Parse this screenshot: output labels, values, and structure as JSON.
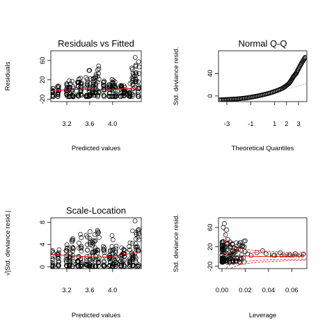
{
  "chart_data": [
    {
      "type": "scatter",
      "title": "Residuals vs Fitted",
      "xlabel": "Predicted values",
      "ylabel": "Residuals",
      "xticks": [
        "3.2",
        "3.6",
        "4.0"
      ],
      "xtick_values": [
        3.2,
        3.6,
        4.0
      ],
      "yticks": [
        "-20",
        "20",
        "60"
      ],
      "ytick_values": [
        -20,
        20,
        60
      ],
      "xlim": [
        2.92,
        4.5
      ],
      "ylim": [
        -25,
        80
      ],
      "reference_line": {
        "y": 0,
        "style": "dotted"
      },
      "smoother_color": "#ff0000",
      "smoother": [
        [
          2.95,
          -3
        ],
        [
          3.3,
          0
        ],
        [
          3.6,
          1
        ],
        [
          3.9,
          -1
        ],
        [
          4.2,
          2
        ],
        [
          4.45,
          3
        ]
      ],
      "x_groups": [
        2.95,
        3.05,
        3.2,
        3.25,
        3.3,
        3.4,
        3.45,
        3.55,
        3.6,
        3.65,
        3.7,
        3.75,
        3.85,
        3.95,
        4.0,
        4.05,
        4.15,
        4.2,
        4.3,
        4.35,
        4.4,
        4.45
      ],
      "y_max_per_group": [
        5,
        10,
        15,
        18,
        25,
        22,
        30,
        28,
        40,
        25,
        35,
        55,
        20,
        12,
        38,
        16,
        15,
        10,
        20,
        45,
        70,
        60
      ],
      "y_min": -15
    },
    {
      "type": "scatter",
      "title": "Normal Q-Q",
      "xlabel": "Theoretical Quantiles",
      "ylabel": "Std. deviance resid.",
      "xticks": [
        "-3",
        "-1",
        "1",
        "2",
        "3"
      ],
      "xtick_values": [
        -3,
        -1,
        1,
        2,
        3
      ],
      "yticks": [
        "0",
        "40"
      ],
      "ytick_values": [
        0,
        40
      ],
      "xlim": [
        -3.7,
        3.7
      ],
      "ylim": [
        -10,
        80
      ],
      "reference_line": {
        "intercept": 0,
        "slope": 6,
        "style": "dotted"
      },
      "quantile_points": [
        [
          -3.6,
          -7
        ],
        [
          -3.2,
          -6.5
        ],
        [
          -2.8,
          -6
        ],
        [
          -2.4,
          -5.5
        ],
        [
          -2,
          -5
        ],
        [
          -1.6,
          -4
        ],
        [
          -1.2,
          -3
        ],
        [
          -0.8,
          -1.5
        ],
        [
          -0.4,
          0
        ],
        [
          0,
          2
        ],
        [
          0.4,
          4
        ],
        [
          0.8,
          6.5
        ],
        [
          1.2,
          9.5
        ],
        [
          1.6,
          13
        ],
        [
          1.9,
          17
        ],
        [
          2.2,
          22
        ],
        [
          2.4,
          28
        ],
        [
          2.6,
          35
        ],
        [
          2.8,
          40
        ],
        [
          3.0,
          48
        ],
        [
          3.2,
          56
        ],
        [
          3.4,
          63
        ],
        [
          3.6,
          70
        ]
      ]
    },
    {
      "type": "scatter",
      "title": "Scale-Location",
      "xlabel": "Predicted values",
      "ylabel": "√|Std. deviance resid.|",
      "xticks": [
        "3.2",
        "3.6",
        "4.0"
      ],
      "xtick_values": [
        3.2,
        3.6,
        4.0
      ],
      "yticks": [
        "0",
        "4",
        "8"
      ],
      "ytick_values": [
        0,
        4,
        8
      ],
      "xlim": [
        2.92,
        4.5
      ],
      "ylim": [
        -0.3,
        8.8
      ],
      "smoother_color": "#ff0000",
      "smoother": [
        [
          2.95,
          2.2
        ],
        [
          3.3,
          2.0
        ],
        [
          3.6,
          1.8
        ],
        [
          3.9,
          1.8
        ],
        [
          4.2,
          2.2
        ],
        [
          4.45,
          2.6
        ]
      ],
      "x_groups": [
        2.95,
        3.05,
        3.2,
        3.25,
        3.3,
        3.4,
        3.45,
        3.55,
        3.6,
        3.65,
        3.7,
        3.75,
        3.85,
        3.95,
        4.0,
        4.05,
        4.15,
        4.2,
        4.3,
        4.35,
        4.4,
        4.45
      ],
      "y_max_per_group": [
        3,
        3.5,
        4,
        4.5,
        5.5,
        5,
        6.5,
        6,
        6.8,
        5.2,
        6,
        7.5,
        4,
        3.5,
        6.2,
        4,
        3.8,
        3.2,
        4.5,
        6.8,
        8.5,
        8
      ]
    },
    {
      "type": "scatter",
      "title": "",
      "xlabel": "Leverage",
      "ylabel": "Std. deviance resid.",
      "xticks": [
        "0.00",
        "0.02",
        "0.04",
        "0.06"
      ],
      "xtick_values": [
        0.0,
        0.02,
        0.04,
        0.06
      ],
      "yticks": [
        "-20",
        "20",
        "60"
      ],
      "ytick_values": [
        -20,
        20,
        60
      ],
      "xlim": [
        -0.003,
        0.073
      ],
      "ylim": [
        -25,
        80
      ],
      "annotation": "Cook's distance",
      "annotation_visible": "k's distance",
      "smoother_color": "#ff0000",
      "smoother": [
        [
          0.0,
          3
        ],
        [
          0.01,
          2
        ],
        [
          0.02,
          1
        ],
        [
          0.035,
          0
        ],
        [
          0.05,
          0
        ],
        [
          0.07,
          1
        ]
      ],
      "cook_levels": [
        12,
        18
      ],
      "leverage_points": [
        [
          0.001,
          60
        ],
        [
          0.002,
          68
        ],
        [
          0.004,
          55
        ],
        [
          0.003,
          45
        ],
        [
          0.005,
          35
        ],
        [
          0.007,
          30
        ],
        [
          0.009,
          25
        ],
        [
          0.011,
          18
        ],
        [
          0.014,
          15
        ],
        [
          0.017,
          22
        ],
        [
          0.02,
          10
        ],
        [
          0.022,
          5
        ],
        [
          0.025,
          2
        ],
        [
          0.03,
          8
        ],
        [
          0.035,
          12
        ],
        [
          0.038,
          6
        ],
        [
          0.045,
          3
        ],
        [
          0.05,
          8
        ],
        [
          0.058,
          4
        ],
        [
          0.063,
          6
        ],
        [
          0.07,
          5
        ]
      ]
    }
  ]
}
